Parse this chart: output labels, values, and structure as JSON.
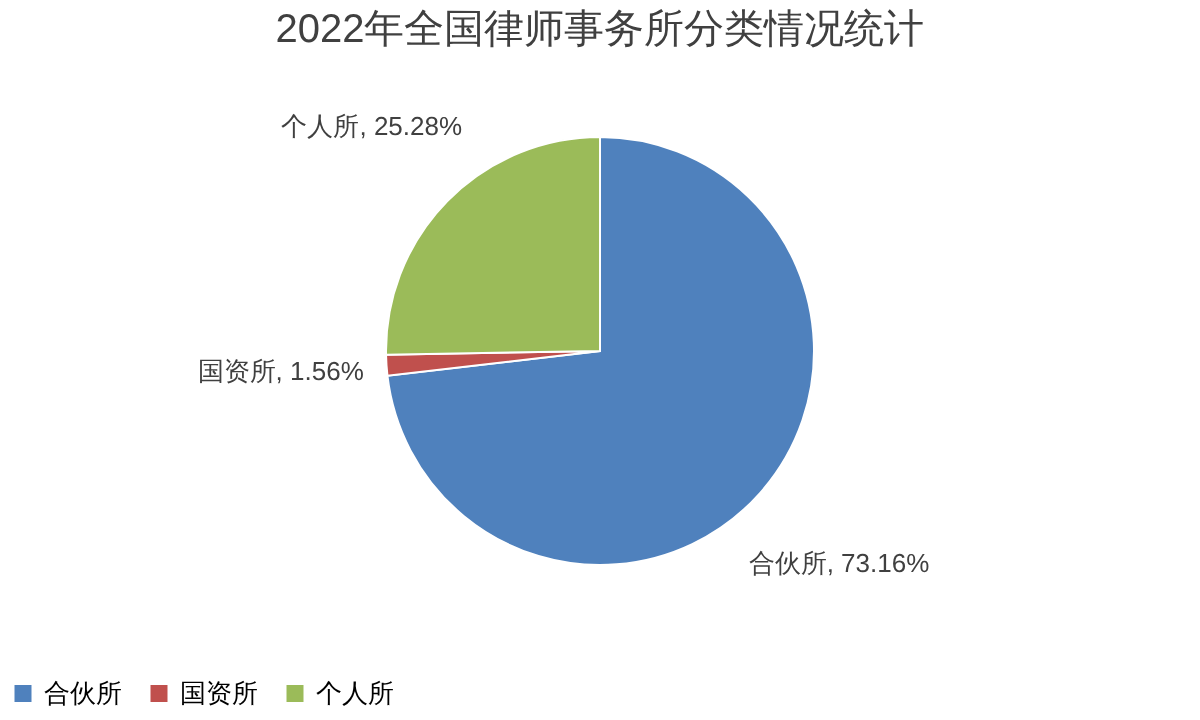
{
  "chart_data": {
    "type": "pie",
    "title": "2022年全国律师事务所分类情况统计",
    "categories": [
      "合伙所",
      "国资所",
      "个人所"
    ],
    "values": [
      73.16,
      1.56,
      25.28
    ],
    "colors": [
      "#4f81bd",
      "#c0504d",
      "#9bbb59"
    ],
    "value_labels": [
      "合伙所, 73.16%",
      "国资所, 1.56%",
      "个人所, 25.28%"
    ],
    "legend": "bottom"
  }
}
